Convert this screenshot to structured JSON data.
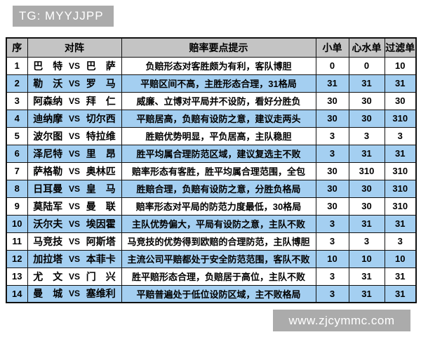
{
  "badge": {
    "text": "TG: MYYJJPP"
  },
  "watermark": {
    "text": "www.zjcymmc.com"
  },
  "colors": {
    "row_alt": "#a4cff1",
    "header_bg": "#c4c4c4",
    "badge_bg": "#ababab",
    "border": "#111111"
  },
  "table": {
    "headers": [
      "序",
      "对阵",
      "赔率要点提示",
      "小单",
      "心水单",
      "过滤单"
    ],
    "vs_label": "VS",
    "rows": [
      {
        "no": "1",
        "home": "巴特",
        "away": "巴萨",
        "tip": "负赔形态对客胜颇为有利，客队博胆",
        "vals": [
          "0",
          "0",
          "10"
        ]
      },
      {
        "no": "2",
        "home": "勒沃",
        "away": "罗马",
        "tip": "平赔区间不高，主胜形态合理，31格局",
        "vals": [
          "31",
          "31",
          "31"
        ]
      },
      {
        "no": "3",
        "home": "阿森纳",
        "away": "拜仁",
        "tip": "威廉、立博对平局并不设防，看好分胜负",
        "vals": [
          "30",
          "30",
          "30"
        ]
      },
      {
        "no": "4",
        "home": "迪纳摩",
        "away": "切尔西",
        "tip": "平赔居高，负赔有设防之意，建议走两头",
        "vals": [
          "30",
          "30",
          "310"
        ]
      },
      {
        "no": "5",
        "home": "波尔图",
        "away": "特拉维",
        "tip": "胜赔优势明显，平负居高，主队稳胆",
        "vals": [
          "3",
          "3",
          "3"
        ]
      },
      {
        "no": "6",
        "home": "泽尼特",
        "away": "里昂",
        "tip": "胜平均属合理防范区域，建议复选主不败",
        "vals": [
          "3",
          "31",
          "31"
        ]
      },
      {
        "no": "7",
        "home": "萨格勒",
        "away": "奥林匹",
        "tip": "赔率形态有客胜，胜平均属合理范围，全包",
        "vals": [
          "30",
          "310",
          "310"
        ]
      },
      {
        "no": "8",
        "home": "日耳曼",
        "away": "皇马",
        "tip": "胜赔合理，负赔有设防之意，分胜负格局",
        "vals": [
          "30",
          "30",
          "310"
        ]
      },
      {
        "no": "9",
        "home": "莫陆军",
        "away": "曼联",
        "tip": "赔率形态对平局的防范力度最低，30格局",
        "vals": [
          "30",
          "30",
          "310"
        ]
      },
      {
        "no": "10",
        "home": "沃尔夫",
        "away": "埃因霍",
        "tip": "主队优势偏大，平局有设防之意，主队不败",
        "vals": [
          "3",
          "31",
          "31"
        ]
      },
      {
        "no": "11",
        "home": "马竞技",
        "away": "阿斯塔",
        "tip": "马竞技的优势得到欧赔的合理防范，主队博胆",
        "vals": [
          "3",
          "3",
          "3"
        ]
      },
      {
        "no": "12",
        "home": "加拉塔",
        "away": "本菲卡",
        "tip": "主流公司平赔都处于安全防范范围，客队不败",
        "vals": [
          "10",
          "10",
          "10"
        ]
      },
      {
        "no": "13",
        "home": "尤文",
        "away": "门兴",
        "tip": "胜平赔形态合理，负赔居于高位，主队不败",
        "vals": [
          "3",
          "31",
          "31"
        ]
      },
      {
        "no": "14",
        "home": "曼城",
        "away": "塞维利",
        "tip": "平赔普遍处于低位设防区域，主不败格局",
        "vals": [
          "3",
          "31",
          "31"
        ]
      }
    ]
  }
}
